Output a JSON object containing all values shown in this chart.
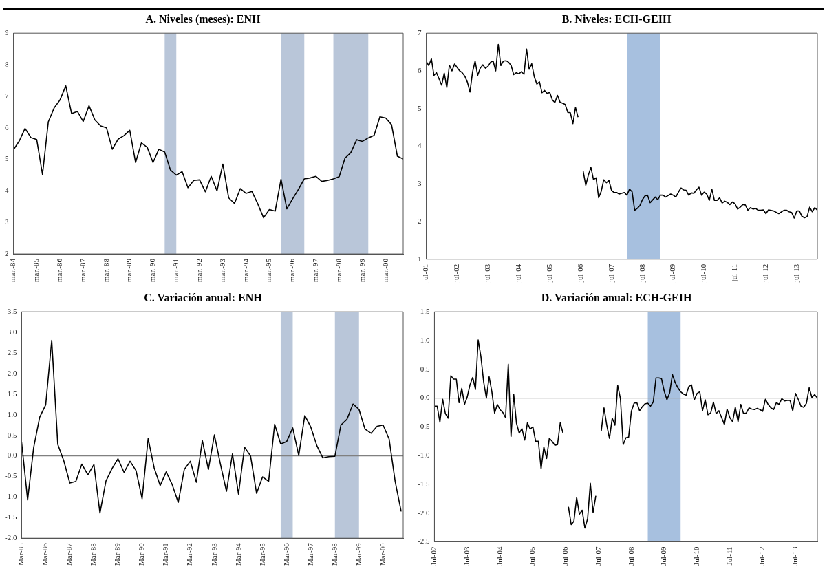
{
  "chart_data": [
    {
      "type": "line",
      "title": "A. Niveles (meses): ENH",
      "marker": "none",
      "xlim": [
        "1984-03",
        "2000-12"
      ],
      "ylim": [
        2,
        9
      ],
      "yticks": [
        2,
        3,
        4,
        5,
        6,
        7,
        8,
        9
      ],
      "xticks": [
        {
          "value": "1984-03",
          "label": "mar.-84"
        },
        {
          "value": "1985-03",
          "label": "mar.-85"
        },
        {
          "value": "1986-03",
          "label": "mar.-86"
        },
        {
          "value": "1987-03",
          "label": "mar.-87"
        },
        {
          "value": "1988-03",
          "label": "mar.-88"
        },
        {
          "value": "1989-03",
          "label": "mar.-89"
        },
        {
          "value": "1990-03",
          "label": "mar.-90"
        },
        {
          "value": "1991-03",
          "label": "mar.-91"
        },
        {
          "value": "1992-03",
          "label": "mar.-92"
        },
        {
          "value": "1993-03",
          "label": "mar.-93"
        },
        {
          "value": "1994-03",
          "label": "mar.-94"
        },
        {
          "value": "1995-03",
          "label": "mar.-95"
        },
        {
          "value": "1996-03",
          "label": "mar.-96"
        },
        {
          "value": "1997-03",
          "label": "mar.-97"
        },
        {
          "value": "1998-03",
          "label": "mar.-98"
        },
        {
          "value": "1999-03",
          "label": "mar.-99"
        },
        {
          "value": "2000-03",
          "label": "mar.-00"
        }
      ],
      "bands": [
        {
          "axis": "x",
          "from": "1990-09",
          "to": "1991-03",
          "color": "#b9c6d9"
        },
        {
          "axis": "x",
          "from": "1995-09",
          "to": "1996-09",
          "color": "#b9c6d9"
        },
        {
          "axis": "x",
          "from": "1997-12",
          "to": "1999-06",
          "color": "#b9c6d9"
        }
      ],
      "series": [
        {
          "color": "#000000",
          "x": [
            "1984-03",
            "1984-06",
            "1984-09",
            "1984-12",
            "1985-03",
            "1985-06",
            "1985-09",
            "1985-12",
            "1986-03",
            "1986-06",
            "1986-09",
            "1986-12",
            "1987-03",
            "1987-06",
            "1987-09",
            "1987-12",
            "1988-03",
            "1988-06",
            "1988-09",
            "1988-12",
            "1989-03",
            "1989-06",
            "1989-09",
            "1989-12",
            "1990-03",
            "1990-06",
            "1990-09",
            "1990-12",
            "1991-03",
            "1991-06",
            "1991-09",
            "1991-12",
            "1992-03",
            "1992-06",
            "1992-09",
            "1992-12",
            "1993-03",
            "1993-06",
            "1993-09",
            "1993-12",
            "1994-03",
            "1994-06",
            "1994-09",
            "1994-12",
            "1995-03",
            "1995-06",
            "1995-09",
            "1995-12",
            "1996-03",
            "1996-06",
            "1996-09",
            "1996-12",
            "1997-03",
            "1997-06",
            "1997-09",
            "1997-12",
            "1998-03",
            "1998-06",
            "1998-09",
            "1998-12",
            "1999-03",
            "1999-06",
            "1999-09",
            "1999-12",
            "2000-03",
            "2000-06",
            "2000-09",
            "2000-12"
          ],
          "values": [
            5.3,
            5.58,
            5.98,
            5.69,
            5.63,
            4.52,
            6.19,
            6.63,
            6.88,
            7.33,
            6.45,
            6.52,
            6.2,
            6.7,
            6.25,
            6.06,
            6.0,
            5.32,
            5.64,
            5.75,
            5.92,
            4.9,
            5.52,
            5.38,
            4.9,
            5.32,
            5.23,
            4.66,
            4.5,
            4.61,
            4.1,
            4.33,
            4.35,
            3.97,
            4.46,
            4.0,
            4.85,
            3.78,
            3.6,
            4.07,
            3.92,
            3.98,
            3.59,
            3.15,
            3.41,
            3.36,
            4.37,
            3.43,
            3.75,
            4.05,
            4.38,
            4.41,
            4.46,
            4.3,
            4.33,
            4.38,
            4.45,
            5.04,
            5.21,
            5.62,
            5.57,
            5.68,
            5.76,
            6.35,
            6.31,
            6.1,
            5.1,
            5.01
          ]
        }
      ]
    },
    {
      "type": "line",
      "title": "B. Niveles: ECH-GEIH",
      "marker": "none",
      "xlim": [
        "2001-07",
        "2014-03"
      ],
      "ylim": [
        1,
        7
      ],
      "yticks": [
        1,
        2,
        3,
        4,
        5,
        6,
        7
      ],
      "xticks": [
        {
          "value": "2001-07",
          "label": "jul-01"
        },
        {
          "value": "2002-07",
          "label": "jul-02"
        },
        {
          "value": "2003-07",
          "label": "jul-03"
        },
        {
          "value": "2004-07",
          "label": "jul-04"
        },
        {
          "value": "2005-07",
          "label": "jul-05"
        },
        {
          "value": "2006-07",
          "label": "jul-06"
        },
        {
          "value": "2007-07",
          "label": "jul-07"
        },
        {
          "value": "2008-07",
          "label": "jul-08"
        },
        {
          "value": "2009-07",
          "label": "jul-09"
        },
        {
          "value": "2010-07",
          "label": "jul-10"
        },
        {
          "value": "2011-07",
          "label": "jul-11"
        },
        {
          "value": "2012-07",
          "label": "jul-12"
        },
        {
          "value": "2013-07",
          "label": "jul-13"
        }
      ],
      "bands": [
        {
          "axis": "x",
          "from": "2008-01",
          "to": "2009-02",
          "color": "#a7c0df"
        }
      ],
      "series": [
        {
          "color": "#000000",
          "x": [
            "2001-07",
            "2001-08",
            "2001-09",
            "2001-10",
            "2001-11",
            "2002-01",
            "2002-02",
            "2002-03",
            "2002-04",
            "2002-05",
            "2002-06",
            "2002-08",
            "2002-09",
            "2002-10",
            "2002-11",
            "2002-12",
            "2003-01",
            "2003-02",
            "2003-03",
            "2003-04",
            "2003-05",
            "2003-06",
            "2003-07",
            "2003-08",
            "2003-09",
            "2003-10",
            "2003-11",
            "2003-12",
            "2004-01",
            "2004-02",
            "2004-03",
            "2004-04",
            "2004-05",
            "2004-06",
            "2004-07",
            "2004-08",
            "2004-09",
            "2004-10",
            "2004-11",
            "2004-12",
            "2005-01",
            "2005-02",
            "2005-03",
            "2005-04",
            "2005-05",
            "2005-06",
            "2005-07",
            "2005-08",
            "2005-09",
            "2005-10",
            "2005-11",
            "2005-12",
            "2006-01",
            "2006-02",
            "2006-03",
            "2006-04",
            "2006-05",
            "2006-06",
            "2006-07",
            "2006-08",
            "2006-09",
            "2006-10",
            "2006-11",
            "2006-12",
            "2007-01",
            "2007-02",
            "2007-03",
            "2007-04",
            "2007-05",
            "2007-06",
            "2007-07",
            "2007-08",
            "2007-09",
            "2007-10",
            "2007-12",
            "2008-01",
            "2008-02",
            "2008-03",
            "2008-04",
            "2008-05",
            "2008-06",
            "2008-07",
            "2008-08",
            "2008-09",
            "2008-10",
            "2008-12",
            "2009-01",
            "2009-02",
            "2009-03",
            "2009-04",
            "2009-06",
            "2009-07",
            "2009-08",
            "2009-09",
            "2009-10",
            "2009-11",
            "2009-12",
            "2010-01",
            "2010-02",
            "2010-03",
            "2010-04",
            "2010-05",
            "2010-06",
            "2010-07",
            "2010-08",
            "2010-09",
            "2010-10",
            "2010-11",
            "2010-12",
            "2011-01",
            "2011-02",
            "2011-03",
            "2011-04",
            "2011-05",
            "2011-06",
            "2011-07",
            "2011-08",
            "2011-09",
            "2011-10",
            "2011-11",
            "2011-12",
            "2012-01",
            "2012-02",
            "2012-03",
            "2012-04",
            "2012-05",
            "2012-06",
            "2012-07",
            "2012-08",
            "2012-10",
            "2012-12",
            "2013-02",
            "2013-03",
            "2013-04",
            "2013-05",
            "2013-06",
            "2013-07",
            "2013-08",
            "2013-09",
            "2013-10",
            "2013-11",
            "2013-12",
            "2014-01",
            "2014-02",
            "2014-03"
          ],
          "values": [
            6.25,
            6.14,
            6.32,
            5.88,
            5.95,
            5.62,
            5.94,
            5.56,
            6.15,
            6.0,
            6.18,
            6.0,
            5.95,
            5.86,
            5.7,
            5.44,
            5.97,
            6.26,
            5.88,
            6.07,
            6.16,
            6.07,
            6.12,
            6.23,
            6.26,
            6.0,
            6.7,
            6.14,
            6.26,
            6.27,
            6.23,
            6.14,
            5.9,
            5.95,
            5.92,
            5.98,
            5.91,
            6.58,
            6.04,
            6.19,
            5.84,
            5.65,
            5.71,
            5.42,
            5.48,
            5.4,
            5.43,
            5.23,
            5.16,
            5.35,
            5.17,
            5.14,
            5.11,
            4.9,
            4.89,
            4.6,
            5.03,
            4.77,
            null,
            3.33,
            2.96,
            3.23,
            3.44,
            3.11,
            3.16,
            2.63,
            2.8,
            3.11,
            3.03,
            3.09,
            2.83,
            2.77,
            2.77,
            2.73,
            2.77,
            2.7,
            2.86,
            2.79,
            2.3,
            2.35,
            2.42,
            2.58,
            2.68,
            2.7,
            2.5,
            2.65,
            2.58,
            2.7,
            2.7,
            2.65,
            2.73,
            2.7,
            2.65,
            2.78,
            2.89,
            2.84,
            2.83,
            2.7,
            2.76,
            2.75,
            2.84,
            2.91,
            2.7,
            2.78,
            2.73,
            2.56,
            2.86,
            2.56,
            2.56,
            2.63,
            2.49,
            2.54,
            2.51,
            2.45,
            2.52,
            2.47,
            2.33,
            2.38,
            2.45,
            2.44,
            2.3,
            2.37,
            2.33,
            2.35,
            2.3,
            2.3,
            2.31,
            2.21,
            2.31,
            2.28,
            2.21,
            2.3,
            2.3,
            2.26,
            2.24,
            2.09,
            2.28,
            2.28,
            2.14,
            2.1,
            2.13,
            2.38,
            2.26,
            2.37,
            2.3
          ]
        }
      ]
    },
    {
      "type": "line",
      "title": "C. Variación anual: ENH",
      "marker": "none",
      "xlim": [
        "1985-03",
        "2001-01"
      ],
      "ylim": [
        -2,
        3.5
      ],
      "yticks": [
        {
          "value": -2,
          "label": "-2.0"
        },
        {
          "value": -1.5,
          "label": "-1.5"
        },
        {
          "value": -1,
          "label": "-1.0"
        },
        {
          "value": -0.5,
          "label": "-0.5"
        },
        {
          "value": 0,
          "label": "0.0"
        },
        {
          "value": 0.5,
          "label": "0.5"
        },
        {
          "value": 1,
          "label": "1.0"
        },
        {
          "value": 1.5,
          "label": "1.5"
        },
        {
          "value": 2,
          "label": "2.0"
        },
        {
          "value": 2.5,
          "label": "2.5"
        },
        {
          "value": 3,
          "label": "3.0"
        },
        {
          "value": 3.5,
          "label": "3.5"
        }
      ],
      "xticks": [
        {
          "value": "1985-03",
          "label": "Mar-85"
        },
        {
          "value": "1986-03",
          "label": "Mar-86"
        },
        {
          "value": "1987-03",
          "label": "Mar-87"
        },
        {
          "value": "1988-03",
          "label": "Mar-88"
        },
        {
          "value": "1989-03",
          "label": "Mar-89"
        },
        {
          "value": "1990-03",
          "label": "Mar-90"
        },
        {
          "value": "1991-03",
          "label": "Mar-91"
        },
        {
          "value": "1992-03",
          "label": "Mar-92"
        },
        {
          "value": "1993-03",
          "label": "Mar-93"
        },
        {
          "value": "1994-03",
          "label": "Mar-94"
        },
        {
          "value": "1995-03",
          "label": "Mar-95"
        },
        {
          "value": "1996-03",
          "label": "Mar-96"
        },
        {
          "value": "1997-03",
          "label": "Mar-97"
        },
        {
          "value": "1998-03",
          "label": "Mar-98"
        },
        {
          "value": "1999-03",
          "label": "Mar-99"
        },
        {
          "value": "2000-03",
          "label": "Mar-00"
        }
      ],
      "bands": [
        {
          "axis": "x",
          "from": "1995-12",
          "to": "1996-06",
          "color": "#b9c6d9"
        },
        {
          "axis": "x",
          "from": "1998-03",
          "to": "1999-03",
          "color": "#b9c6d9"
        }
      ],
      "ref_lines": [
        {
          "axis": "y",
          "value": 0,
          "color": "#808080"
        }
      ],
      "series": [
        {
          "color": "#000000",
          "x": [
            "1985-03",
            "1985-06",
            "1985-09",
            "1985-12",
            "1986-03",
            "1986-06",
            "1986-09",
            "1986-12",
            "1987-03",
            "1987-06",
            "1987-09",
            "1987-12",
            "1988-03",
            "1988-06",
            "1988-09",
            "1988-12",
            "1989-03",
            "1989-06",
            "1989-09",
            "1989-12",
            "1990-03",
            "1990-06",
            "1990-09",
            "1990-12",
            "1991-03",
            "1991-06",
            "1991-09",
            "1991-12",
            "1992-03",
            "1992-06",
            "1992-09",
            "1992-12",
            "1993-03",
            "1993-06",
            "1993-09",
            "1993-12",
            "1994-03",
            "1994-06",
            "1994-09",
            "1994-12",
            "1995-03",
            "1995-06",
            "1995-09",
            "1995-12",
            "1996-03",
            "1996-06",
            "1996-09",
            "1996-12",
            "1997-03",
            "1997-06",
            "1997-09",
            "1997-12",
            "1998-03",
            "1998-06",
            "1998-09",
            "1998-12",
            "1999-03",
            "1999-06",
            "1999-09",
            "1999-12",
            "2000-03",
            "2000-06",
            "2000-09",
            "2000-12"
          ],
          "values": [
            0.33,
            -1.07,
            0.2,
            0.94,
            1.24,
            2.81,
            0.28,
            -0.12,
            -0.66,
            -0.62,
            -0.2,
            -0.46,
            -0.21,
            -1.39,
            -0.61,
            -0.31,
            -0.07,
            -0.4,
            -0.13,
            -0.36,
            -1.04,
            0.42,
            -0.29,
            -0.72,
            -0.39,
            -0.7,
            -1.13,
            -0.33,
            -0.13,
            -0.64,
            0.37,
            -0.33,
            0.51,
            -0.2,
            -0.86,
            0.05,
            -0.93,
            0.21,
            0.0,
            -0.91,
            -0.51,
            -0.62,
            0.77,
            0.29,
            0.35,
            0.68,
            0.01,
            0.98,
            0.7,
            0.25,
            -0.05,
            -0.02,
            -0.01,
            0.75,
            0.89,
            1.26,
            1.13,
            0.65,
            0.55,
            0.72,
            0.75,
            0.41,
            -0.62,
            -1.35
          ]
        }
      ]
    },
    {
      "type": "line",
      "title": "D. Variación anual: ECH-GEIH",
      "marker": "none",
      "xlim": [
        "2002-07",
        "2014-03"
      ],
      "ylim": [
        -2.5,
        1.5
      ],
      "yticks": [
        {
          "value": -2.5,
          "label": "-2.5"
        },
        {
          "value": -2,
          "label": "-2.0"
        },
        {
          "value": -1.5,
          "label": "-1.5"
        },
        {
          "value": -1,
          "label": "-1.0"
        },
        {
          "value": -0.5,
          "label": "-0.5"
        },
        {
          "value": 0,
          "label": "0.0"
        },
        {
          "value": 0.5,
          "label": "0.5"
        },
        {
          "value": 1,
          "label": "1.0"
        },
        {
          "value": 1.5,
          "label": "1.5"
        }
      ],
      "xticks": [
        {
          "value": "2002-07",
          "label": "Jul-02"
        },
        {
          "value": "2003-07",
          "label": "Jul-03"
        },
        {
          "value": "2004-07",
          "label": "Jul-04"
        },
        {
          "value": "2005-07",
          "label": "Jul-05"
        },
        {
          "value": "2006-07",
          "label": "Jul-06"
        },
        {
          "value": "2007-07",
          "label": "Jul-07"
        },
        {
          "value": "2008-07",
          "label": "Jul-08"
        },
        {
          "value": "2009-07",
          "label": "Jul-09"
        },
        {
          "value": "2010-07",
          "label": "Jul-10"
        },
        {
          "value": "2011-07",
          "label": "Jul-11"
        },
        {
          "value": "2012-07",
          "label": "Jul-12"
        },
        {
          "value": "2013-07",
          "label": "Jul-13"
        }
      ],
      "bands": [
        {
          "axis": "x",
          "from": "2009-01",
          "to": "2010-01",
          "color": "#a7c0df"
        }
      ],
      "ref_lines": [
        {
          "axis": "y",
          "value": 0,
          "color": "#a0a0a0"
        }
      ],
      "series": [
        {
          "color": "#000000",
          "x": [
            "2002-07",
            "2002-08",
            "2002-09",
            "2002-10",
            "2002-11",
            "2002-12",
            "2003-01",
            "2003-02",
            "2003-03",
            "2003-04",
            "2003-05",
            "2003-06",
            "2003-07",
            "2003-08",
            "2003-09",
            "2003-10",
            "2003-11",
            "2003-12",
            "2004-01",
            "2004-02",
            "2004-03",
            "2004-04",
            "2004-05",
            "2004-06",
            "2004-07",
            "2004-08",
            "2004-09",
            "2004-10",
            "2004-11",
            "2004-12",
            "2005-01",
            "2005-02",
            "2005-03",
            "2005-04",
            "2005-05",
            "2005-06",
            "2005-07",
            "2005-08",
            "2005-09",
            "2005-10",
            "2005-11",
            "2005-12",
            "2006-01",
            "2006-02",
            "2006-03",
            "2006-04",
            "2006-05",
            "2006-06",
            "2006-07",
            "2006-08",
            "2006-09",
            "2006-10",
            "2006-11",
            "2006-12",
            "2007-01",
            "2007-02",
            "2007-03",
            "2007-04",
            "2007-05",
            "2007-06",
            "2007-07",
            "2007-08",
            "2007-09",
            "2007-10",
            "2007-11",
            "2007-12",
            "2008-01",
            "2008-02",
            "2008-03",
            "2008-04",
            "2008-05",
            "2008-06",
            "2008-07",
            "2008-08",
            "2008-09",
            "2008-10",
            "2008-11",
            "2008-12",
            "2009-01",
            "2009-02",
            "2009-03",
            "2009-04",
            "2009-05",
            "2009-06",
            "2009-07",
            "2009-08",
            "2009-09",
            "2009-10",
            "2009-11",
            "2009-12",
            "2010-01",
            "2010-02",
            "2010-03",
            "2010-04",
            "2010-05",
            "2010-06",
            "2010-07",
            "2010-08",
            "2010-09",
            "2010-10",
            "2010-11",
            "2010-12",
            "2011-01",
            "2011-02",
            "2011-03",
            "2011-04",
            "2011-05",
            "2011-06",
            "2011-07",
            "2011-08",
            "2011-09",
            "2011-10",
            "2011-11",
            "2011-12",
            "2012-01",
            "2012-02",
            "2012-03",
            "2012-04",
            "2012-05",
            "2012-06",
            "2012-07",
            "2012-08",
            "2012-09",
            "2012-10",
            "2012-11",
            "2012-12",
            "2013-01",
            "2013-02",
            "2013-03",
            "2013-04",
            "2013-05",
            "2013-06",
            "2013-07",
            "2013-08",
            "2013-09",
            "2013-10",
            "2013-11",
            "2013-12",
            "2014-01",
            "2014-02",
            "2014-03"
          ],
          "values": [
            -0.14,
            -0.14,
            -0.42,
            -0.02,
            -0.27,
            -0.35,
            0.39,
            0.33,
            0.33,
            -0.08,
            0.17,
            -0.11,
            0.02,
            0.23,
            0.36,
            0.15,
            1.01,
            0.72,
            0.28,
            0.0,
            0.37,
            0.11,
            -0.26,
            -0.11,
            -0.2,
            -0.25,
            -0.34,
            0.59,
            -0.67,
            0.06,
            -0.44,
            -0.61,
            -0.53,
            -0.73,
            -0.43,
            -0.54,
            -0.5,
            -0.75,
            -0.75,
            -1.23,
            -0.85,
            -1.05,
            -0.7,
            -0.75,
            -0.82,
            -0.81,
            -0.43,
            -0.61,
            null,
            -1.89,
            -2.2,
            -2.14,
            -1.73,
            -2.02,
            -1.95,
            -2.26,
            -2.1,
            -1.48,
            -1.99,
            -1.7,
            null,
            -0.57,
            -0.17,
            -0.47,
            -0.7,
            -0.35,
            -0.47,
            0.22,
            -0.01,
            -0.81,
            -0.69,
            -0.68,
            -0.23,
            -0.09,
            -0.08,
            -0.22,
            -0.15,
            -0.1,
            -0.09,
            -0.14,
            -0.07,
            0.35,
            0.35,
            0.34,
            0.12,
            -0.03,
            0.09,
            0.41,
            0.27,
            0.18,
            0.11,
            0.07,
            0.05,
            0.2,
            0.23,
            -0.03,
            0.08,
            0.11,
            -0.22,
            -0.03,
            -0.29,
            -0.26,
            -0.07,
            -0.27,
            -0.22,
            -0.34,
            -0.46,
            -0.19,
            -0.34,
            -0.41,
            -0.16,
            -0.41,
            -0.11,
            -0.27,
            -0.26,
            -0.17,
            -0.19,
            -0.2,
            -0.18,
            -0.2,
            -0.23,
            -0.02,
            -0.11,
            -0.17,
            -0.2,
            -0.08,
            -0.11,
            -0.01,
            -0.05,
            -0.04,
            -0.04,
            -0.22,
            0.08,
            -0.02,
            -0.14,
            -0.16,
            -0.09,
            0.18,
            0.01,
            0.06,
            0.0
          ]
        }
      ]
    }
  ]
}
